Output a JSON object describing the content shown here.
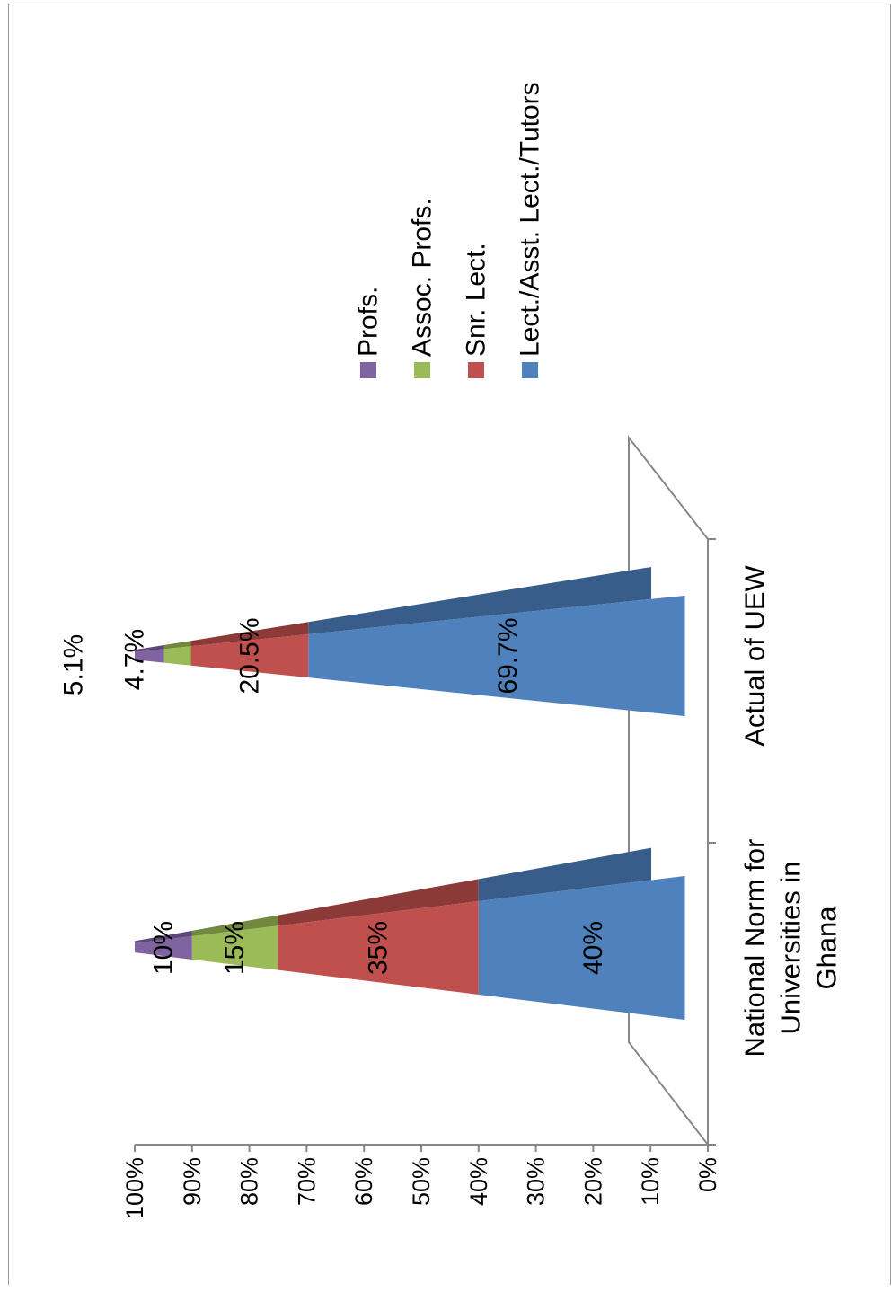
{
  "chart_data": {
    "type": "bar",
    "subtype": "stacked-100-percent-pyramid-3d",
    "orientation": "rotated",
    "categories": [
      "National Norm for Universities in Ghana",
      "Actual of UEW"
    ],
    "series": [
      {
        "name": "Lect./Asst. Lect./Tutors",
        "values": [
          40,
          69.7
        ],
        "labels": [
          "40%",
          "69.7%"
        ],
        "color": "#4f81bd",
        "dark": "#385d8a"
      },
      {
        "name": "Snr. Lect.",
        "values": [
          35,
          20.5
        ],
        "labels": [
          "35%",
          "20.5%"
        ],
        "color": "#c0504d",
        "dark": "#8c3a38"
      },
      {
        "name": "Assoc. Profs.",
        "values": [
          15,
          4.7
        ],
        "labels": [
          "15%",
          "4.7%"
        ],
        "color": "#9bbb59",
        "dark": "#71893f"
      },
      {
        "name": "Profs.",
        "values": [
          10,
          5.1
        ],
        "labels": [
          "10%",
          "5.1%"
        ],
        "color": "#8064a2",
        "dark": "#5c4876"
      }
    ],
    "y_ticks": [
      "0%",
      "10%",
      "20%",
      "30%",
      "40%",
      "50%",
      "60%",
      "70%",
      "80%",
      "90%",
      "100%"
    ],
    "ylim": [
      0,
      100
    ],
    "legend_position": "right",
    "grid": false
  }
}
